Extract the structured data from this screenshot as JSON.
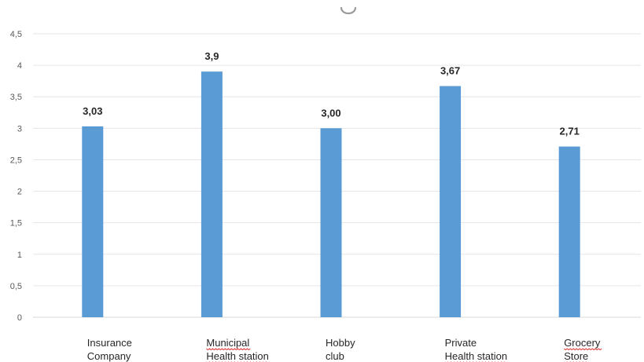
{
  "chart_data": {
    "type": "bar",
    "categories": [
      [
        "Insurance",
        "Company"
      ],
      [
        "Municipal",
        "Health station"
      ],
      [
        "Hobby",
        "club"
      ],
      [
        "Private",
        "Health station"
      ],
      [
        "Grocery",
        "Store"
      ]
    ],
    "values": [
      3.03,
      3.9,
      3.0,
      3.67,
      2.71
    ],
    "data_labels": [
      "3,03",
      "3,9",
      "3,00",
      "3,67",
      "2,71"
    ],
    "y_ticks": [
      "0",
      "0,5",
      "1",
      "1,5",
      "2",
      "2,5",
      "3",
      "3,5",
      "4",
      "4,5"
    ],
    "ylim": [
      0,
      4.5
    ],
    "title": "",
    "xlabel": "",
    "ylabel": "",
    "grid": true,
    "legend": "none",
    "colors": {
      "bar": "#5b9bd5",
      "grid": "#e6e6e6",
      "spellcheck": "#e03030"
    },
    "spellcheck_underlined": [
      [
        false,
        false
      ],
      [
        true,
        true
      ],
      [
        false,
        false
      ],
      [
        false,
        true
      ],
      [
        true,
        true
      ]
    ]
  }
}
